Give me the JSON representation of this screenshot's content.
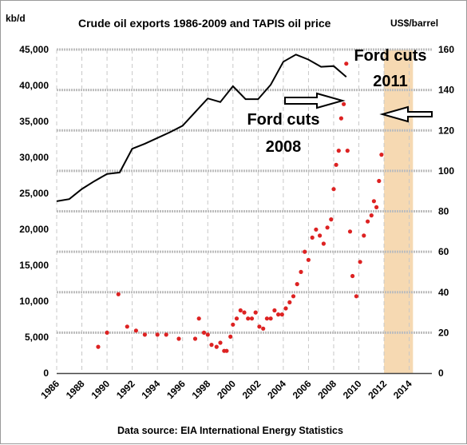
{
  "chart_data": {
    "type": "line",
    "title": "Crude oil exports 1986-2009 and TAPIS oil price",
    "left_axis_unit": "kb/d",
    "right_axis_unit": "US$/barrel",
    "source": "Data source: EIA International Energy Statistics",
    "x_ticks": [
      "1986",
      "1988",
      "1990",
      "1992",
      "1994",
      "1996",
      "1998",
      "2000",
      "2002",
      "2004",
      "2006",
      "2008",
      "2010",
      "2012",
      "2014"
    ],
    "y_left_ticks": [
      "0",
      "5,000",
      "10,000",
      "15,000",
      "20,000",
      "25,000",
      "30,000",
      "35,000",
      "40,000",
      "45,000"
    ],
    "y_right_ticks": [
      "0",
      "20",
      "40",
      "60",
      "80",
      "100",
      "120",
      "140",
      "160"
    ],
    "xlim": [
      1986,
      2015.8
    ],
    "ylim_left": [
      0,
      45000
    ],
    "ylim_right": [
      0,
      160
    ],
    "grid": true,
    "shaded_region": {
      "x_start": 2012,
      "x_end": 2014.3,
      "color": "#f6d9b2"
    },
    "series": [
      {
        "axis": "left",
        "color": "#000000",
        "style": "line",
        "x": [
          1986,
          1987,
          1988,
          1989,
          1990,
          1991,
          1992,
          1993,
          1994,
          1995,
          1996,
          1997,
          1998,
          1999,
          2000,
          2001,
          2002,
          2003,
          2004,
          2005,
          2006,
          2007,
          2008,
          2009
        ],
        "values": [
          23900,
          24200,
          25600,
          26700,
          27700,
          27900,
          31200,
          31900,
          32700,
          33500,
          34400,
          36300,
          38200,
          37700,
          39900,
          38100,
          38100,
          40100,
          43300,
          44300,
          43600,
          42600,
          42700,
          41200
        ]
      },
      {
        "axis": "right",
        "color": "#dd2222",
        "style": "dots",
        "x": [
          1989.3,
          1990.0,
          1990.9,
          1991.6,
          1992.3,
          1993.0,
          1994.0,
          1994.7,
          1995.7,
          1997.0,
          1997.3,
          1997.7,
          1998.0,
          1998.3,
          1998.7,
          1999.0,
          1999.3,
          1999.5,
          1999.8,
          2000.0,
          2000.3,
          2000.6,
          2000.9,
          2001.2,
          2001.5,
          2001.8,
          2002.1,
          2002.4,
          2002.7,
          2003.0,
          2003.3,
          2003.6,
          2003.9,
          2004.2,
          2004.5,
          2004.8,
          2005.1,
          2005.4,
          2005.7,
          2006.0,
          2006.3,
          2006.6,
          2006.9,
          2007.2,
          2007.5,
          2007.8,
          2008.0,
          2008.2,
          2008.4,
          2008.6,
          2008.8,
          2009.0,
          2009.1,
          2009.3,
          2009.5,
          2009.8,
          2010.1,
          2010.4,
          2010.7,
          2011.0,
          2011.2,
          2011.4,
          2011.6,
          2011.8
        ],
        "values": [
          13,
          20,
          39,
          23,
          21,
          19,
          19,
          19,
          17,
          17,
          27,
          20,
          19,
          14,
          13,
          15,
          11,
          11,
          18,
          24,
          27,
          31,
          30,
          27,
          27,
          30,
          23,
          22,
          27,
          27,
          31,
          29,
          29,
          32,
          35,
          38,
          44,
          50,
          60,
          56,
          67,
          71,
          68,
          64,
          72,
          76,
          91,
          103,
          110,
          126,
          133,
          153,
          110,
          70,
          48,
          38,
          55,
          68,
          75,
          78,
          85,
          82,
          95,
          108
        ]
      }
    ],
    "annotations": [
      {
        "line1": "Ford cuts",
        "line2": "2008"
      },
      {
        "line1": "Ford cuts",
        "line2": "2011"
      }
    ]
  }
}
